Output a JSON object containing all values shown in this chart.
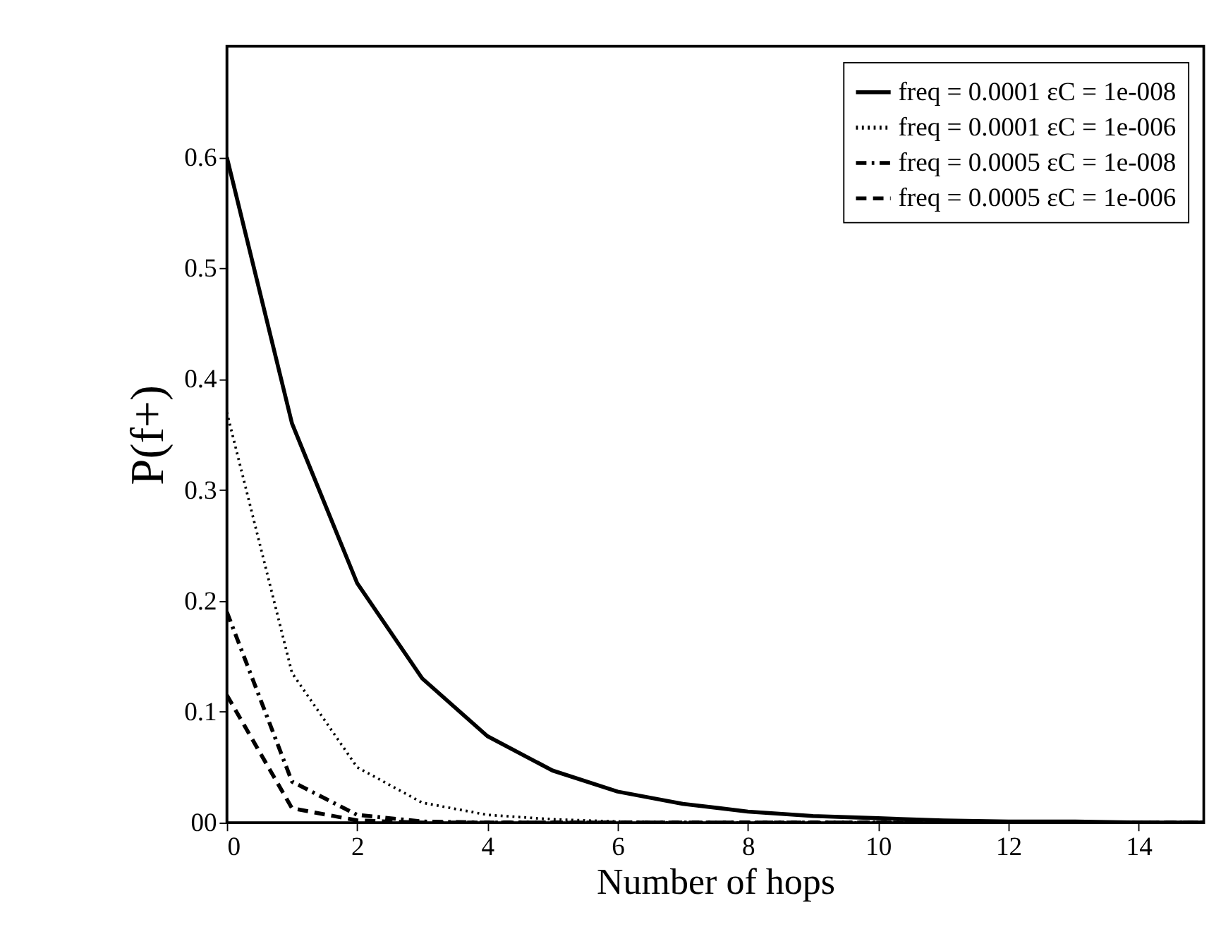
{
  "chart_data": {
    "type": "line",
    "xlabel": "Number of hops",
    "ylabel": "P(f+)",
    "x": [
      0,
      1,
      2,
      3,
      4,
      5,
      6,
      7,
      8,
      9,
      10,
      11,
      12,
      13,
      14,
      15
    ],
    "series": [
      {
        "name": "freq = 0.0001 εC = 1e-008",
        "color": "#000000",
        "line_style": "solid",
        "values": [
          0.6,
          0.36,
          0.216,
          0.13,
          0.078,
          0.047,
          0.028,
          0.017,
          0.01,
          0.006,
          0.004,
          0.002,
          0.001,
          0.001,
          0,
          0
        ]
      },
      {
        "name": "freq = 0.0001 εC = 1e-006",
        "color": "#000000",
        "line_style": "dotted",
        "values": [
          0.37,
          0.135,
          0.05,
          0.018,
          0.007,
          0.003,
          0.001,
          0,
          0,
          0,
          0,
          0,
          0,
          0,
          0,
          0
        ]
      },
      {
        "name": "freq = 0.0005 εC = 1e-008",
        "color": "#000000",
        "line_style": "dashdot",
        "values": [
          0.19,
          0.037,
          0.007,
          0.001,
          0,
          0,
          0,
          0,
          0,
          0,
          0,
          0,
          0,
          0,
          0,
          0
        ]
      },
      {
        "name": "freq = 0.0005 εC = 1e-006",
        "color": "#000000",
        "line_style": "dashed",
        "values": [
          0.115,
          0.013,
          0.002,
          0,
          0,
          0,
          0,
          0,
          0,
          0,
          0,
          0,
          0,
          0,
          0,
          0
        ]
      }
    ],
    "xlim": [
      0,
      15
    ],
    "xticks": [
      0,
      2,
      4,
      6,
      8,
      10,
      12,
      14
    ],
    "ylim": [
      0,
      0.7
    ],
    "yticks": [
      {
        "value": 0,
        "label": "00"
      },
      0.1,
      0.2,
      0.3,
      0.4,
      0.5,
      0.6
    ],
    "grid": false,
    "legend": "top right",
    "marker": "none"
  }
}
